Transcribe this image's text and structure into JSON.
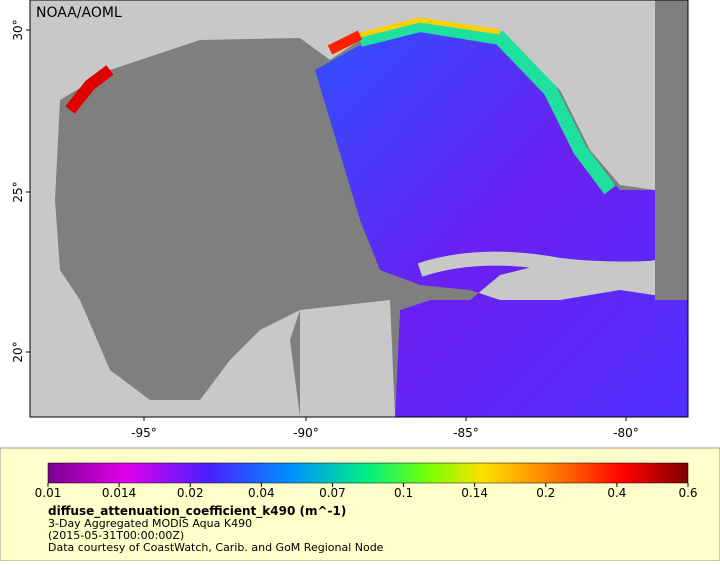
{
  "map": {
    "credit": "NOAA/AOML",
    "lat_labels": [
      "30°",
      "25°",
      "20°"
    ],
    "lon_labels": [
      "-95°",
      "-90°",
      "-85°",
      "-80°"
    ]
  },
  "legend": {
    "ticks": [
      "0.01",
      "0.014",
      "0.02",
      "0.04",
      "0.07",
      "0.1",
      "0.14",
      "0.2",
      "0.4",
      "0.6"
    ],
    "variable": "diffuse_attenuation_coefficient_k490 (m^-1)",
    "lines": [
      "3-Day Aggregated MODIS Aqua K490",
      "(2015-05-31T00:00:00Z)",
      "Data courtesy of CoastWatch, Carib. and GoM Regional Node"
    ]
  }
}
